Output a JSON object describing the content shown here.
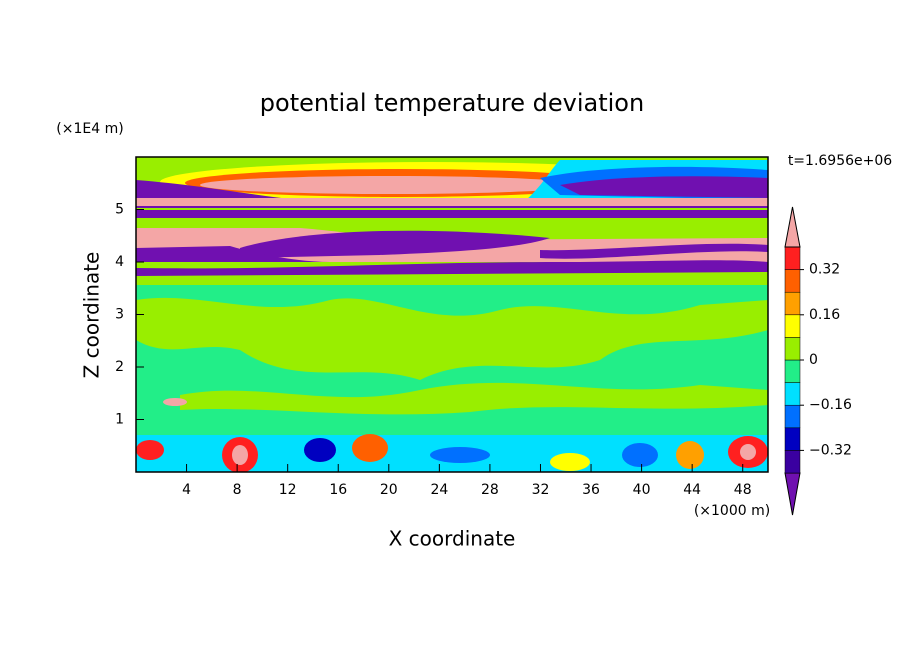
{
  "chart_data": {
    "type": "contour",
    "title": "potential temperature deviation",
    "x_label": "X coordinate",
    "y_label": "Z coordinate",
    "x_unit": "(×1000 m)",
    "y_unit": "(×1E4 m)",
    "annotation": "t=1.6956e+06",
    "xlim": [
      0,
      50
    ],
    "xticks": [
      4,
      8,
      12,
      16,
      20,
      24,
      28,
      32,
      36,
      40,
      44,
      48
    ],
    "ylim": [
      0,
      6
    ],
    "yticks": [
      1,
      2,
      3,
      4,
      5
    ],
    "levels": [
      -0.4,
      -0.32,
      -0.24,
      -0.16,
      -0.08,
      0,
      0.08,
      0.16,
      0.24,
      0.32,
      0.4
    ],
    "colors": [
      "#7010b0",
      "#3a00a0",
      "#0000c0",
      "#0070ff",
      "#00e0ff",
      "#22ee88",
      "#99ee00",
      "#ffff00",
      "#ffa000",
      "#ff6000",
      "#ff2020",
      "#f4a6a6"
    ],
    "colorbar_ticks": [
      {
        "value": -0.32,
        "label": "−0.32"
      },
      {
        "value": -0.16,
        "label": "−0.16"
      },
      0,
      0.16,
      0.32
    ]
  }
}
